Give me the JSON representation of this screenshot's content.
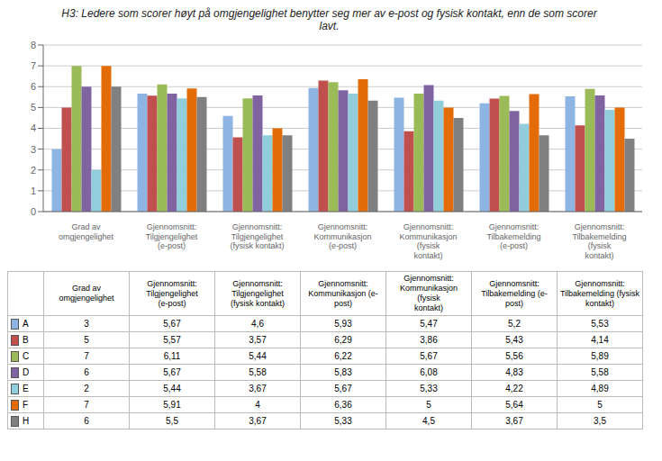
{
  "chart_data": {
    "type": "bar",
    "title": "H3: Ledere som scorer høyt på omgjengelighet benytter seg mer av e-post og fysisk kontakt, enn de som scorer\nlavt.",
    "categories": [
      "Grad av omgjengelighet",
      "Gjennomsnitt: Tilgjengelighet\n(e-post)",
      "Gjennomsnitt: Tilgjengelighet\n(fysisk kontakt)",
      "Gjennomsnitt:\nKommunikasjon (e-post)",
      "Gjennomsnitt:\nKommunikasjon (fysisk\nkontakt)",
      "Gjennomsnitt:\nTilbakemelding (e-post)",
      "Gjennomsnitt:\nTilbakemelding (fysisk\nkontakt)"
    ],
    "series": [
      {
        "name": "A",
        "color": "#8db4e2",
        "values": [
          3,
          5.67,
          4.6,
          5.93,
          5.47,
          5.2,
          5.53
        ],
        "value_labels": [
          "3",
          "5,67",
          "4,6",
          "5,93",
          "5,47",
          "5,2",
          "5,53"
        ]
      },
      {
        "name": "B",
        "color": "#c0504d",
        "values": [
          5,
          5.57,
          3.57,
          6.29,
          3.86,
          5.43,
          4.14
        ],
        "value_labels": [
          "5",
          "5,57",
          "3,57",
          "6,29",
          "3,86",
          "5,43",
          "4,14"
        ]
      },
      {
        "name": "C",
        "color": "#9bbb59",
        "values": [
          7,
          6.11,
          5.44,
          6.22,
          5.67,
          5.56,
          5.89
        ],
        "value_labels": [
          "7",
          "6,11",
          "5,44",
          "6,22",
          "5,67",
          "5,56",
          "5,89"
        ]
      },
      {
        "name": "D",
        "color": "#8064a2",
        "values": [
          6,
          5.67,
          5.58,
          5.83,
          6.08,
          4.83,
          5.58
        ],
        "value_labels": [
          "6",
          "5,67",
          "5,58",
          "5,83",
          "6,08",
          "4,83",
          "5,58"
        ]
      },
      {
        "name": "E",
        "color": "#92cddc",
        "values": [
          2,
          5.44,
          3.67,
          5.67,
          5.33,
          4.22,
          4.89
        ],
        "value_labels": [
          "2",
          "5,44",
          "3,67",
          "5,67",
          "5,33",
          "4,22",
          "4,89"
        ]
      },
      {
        "name": "F",
        "color": "#e36c09",
        "values": [
          7,
          5.91,
          4,
          6.36,
          5,
          5.64,
          5
        ],
        "value_labels": [
          "7",
          "5,91",
          "4",
          "6,36",
          "5",
          "5,64",
          "5"
        ]
      },
      {
        "name": "H",
        "color": "#808080",
        "values": [
          6,
          5.5,
          3.67,
          5.33,
          4.5,
          3.67,
          3.5
        ],
        "value_labels": [
          "6",
          "5,5",
          "3,67",
          "5,33",
          "4,5",
          "3,67",
          "3,5"
        ]
      }
    ],
    "ylim": [
      0,
      8
    ],
    "yticks": [
      0,
      1,
      2,
      3,
      4,
      5,
      6,
      7,
      8
    ],
    "grid": true
  }
}
